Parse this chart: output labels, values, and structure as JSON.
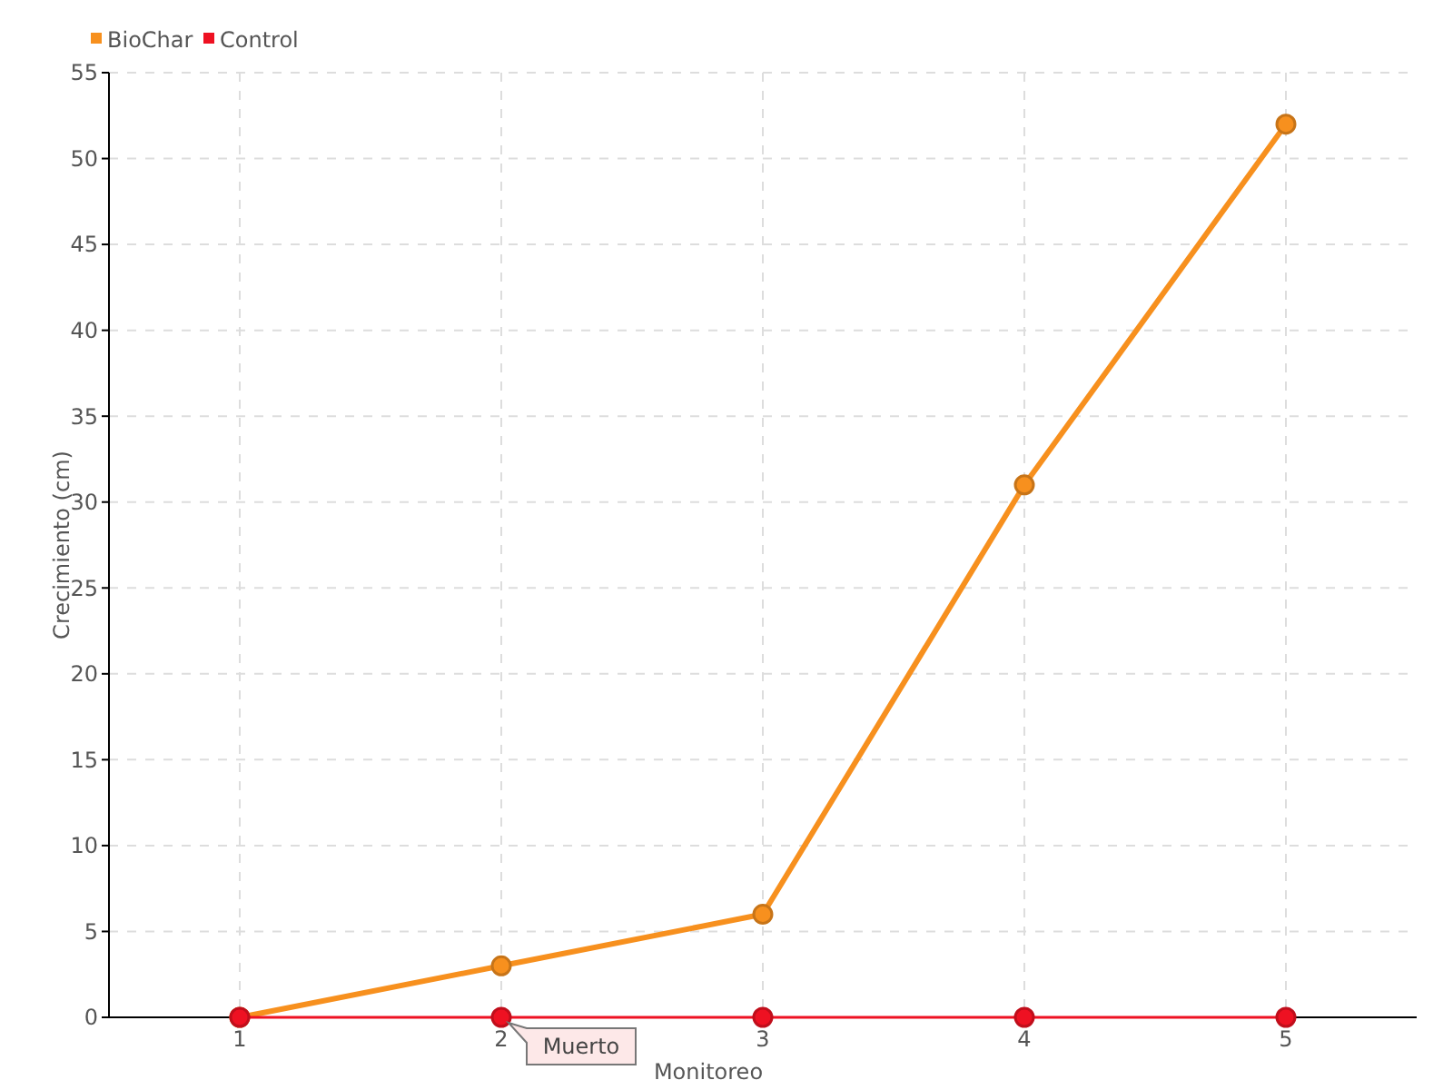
{
  "chart_data": {
    "type": "line",
    "xlabel": "Monitoreo",
    "ylabel": "Crecimiento (cm)",
    "x": [
      1,
      2,
      3,
      4,
      5
    ],
    "series": [
      {
        "name": "BioChar",
        "color": "#f7901e",
        "values": [
          0,
          3,
          6,
          31,
          52
        ]
      },
      {
        "name": "Control",
        "color": "#ee1122",
        "values": [
          0,
          0,
          0,
          0,
          0
        ]
      }
    ],
    "xlim": [
      0.5,
      5.5
    ],
    "xticks": [
      1,
      2,
      3,
      4,
      5
    ],
    "ylim": [
      0,
      55
    ],
    "yticks": [
      0,
      5,
      10,
      15,
      20,
      25,
      30,
      35,
      40,
      45,
      50,
      55
    ],
    "grid": true,
    "legend": "top left",
    "marker": "circle",
    "line_style": "solid",
    "annotations": [
      {
        "text": "Muerto",
        "x": 2,
        "y": 0
      }
    ]
  }
}
